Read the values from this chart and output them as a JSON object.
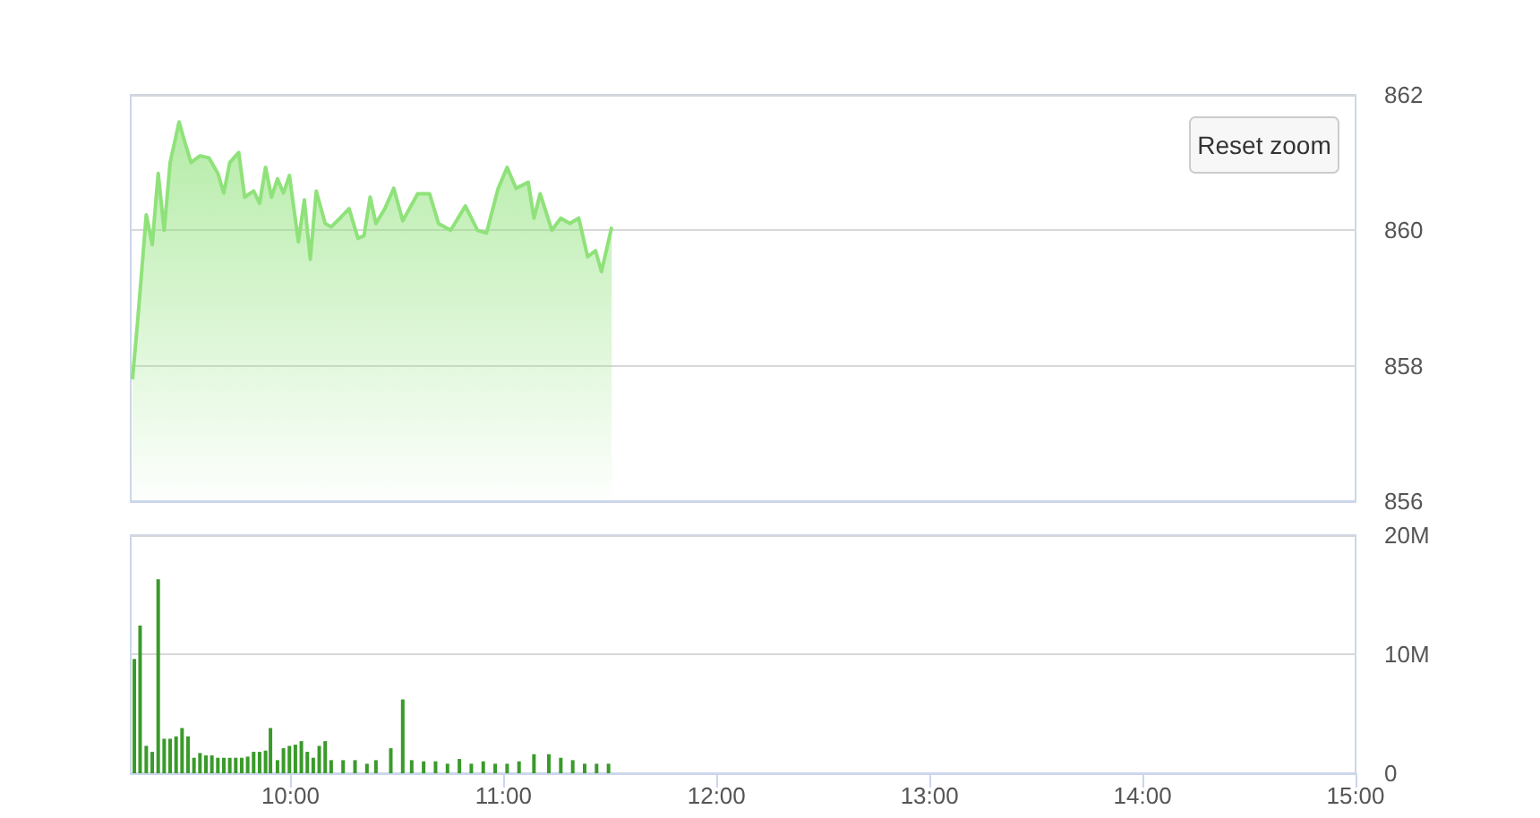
{
  "chart_data": [
    {
      "type": "area",
      "color": "#8fe27a",
      "x": [
        9.258,
        9.281,
        9.323,
        9.351,
        9.379,
        9.407,
        9.435,
        9.477,
        9.505,
        9.533,
        9.575,
        9.617,
        9.659,
        9.687,
        9.715,
        9.757,
        9.785,
        9.827,
        9.855,
        9.883,
        9.911,
        9.939,
        9.967,
        9.995,
        10.037,
        10.065,
        10.093,
        10.121,
        10.163,
        10.191,
        10.233,
        10.275,
        10.317,
        10.345,
        10.374,
        10.401,
        10.443,
        10.485,
        10.527,
        10.597,
        10.653,
        10.695,
        10.752,
        10.821,
        10.878,
        10.92,
        10.975,
        11.017,
        11.059,
        11.116,
        11.143,
        11.172,
        11.227,
        11.269,
        11.311,
        11.353,
        11.395,
        11.432,
        11.46,
        11.508
      ],
      "values": [
        857.8,
        858.6,
        860.23,
        859.79,
        860.84,
        860.0,
        861.0,
        861.6,
        861.29,
        861.0,
        861.1,
        861.07,
        860.84,
        860.55,
        861.0,
        861.15,
        860.49,
        860.58,
        860.4,
        860.93,
        860.49,
        860.76,
        860.55,
        860.81,
        859.83,
        860.45,
        859.57,
        860.58,
        860.1,
        860.05,
        860.18,
        860.32,
        859.88,
        859.92,
        860.49,
        860.1,
        860.32,
        860.62,
        860.14,
        860.54,
        860.54,
        860.1,
        860.0,
        860.36,
        860.0,
        859.96,
        860.62,
        860.93,
        860.62,
        860.71,
        860.18,
        860.54,
        860.0,
        860.18,
        860.1,
        860.18,
        859.61,
        859.7,
        859.39,
        860.05
      ],
      "xlim": [
        9.25,
        15
      ],
      "ylim": [
        856,
        862
      ],
      "yticks": [
        856,
        858,
        860,
        862
      ],
      "grid": "y",
      "tick_labels": "y",
      "annotations": [
        "Reset zoom"
      ]
    },
    {
      "type": "bar",
      "color": "#3a9a2a",
      "x": [
        9.267,
        9.294,
        9.323,
        9.351,
        9.379,
        9.407,
        9.435,
        9.463,
        9.491,
        9.519,
        9.547,
        9.575,
        9.603,
        9.631,
        9.659,
        9.687,
        9.715,
        9.743,
        9.771,
        9.799,
        9.827,
        9.855,
        9.883,
        9.906,
        9.939,
        9.967,
        9.995,
        10.023,
        10.051,
        10.079,
        10.107,
        10.135,
        10.163,
        10.191,
        10.247,
        10.303,
        10.359,
        10.401,
        10.471,
        10.527,
        10.569,
        10.625,
        10.681,
        10.737,
        10.793,
        10.849,
        10.905,
        10.961,
        11.017,
        11.073,
        11.143,
        11.213,
        11.269,
        11.325,
        11.381,
        11.437,
        11.493
      ],
      "values": [
        9.6,
        12.4,
        2.3,
        1.8,
        16.3,
        2.9,
        2.9,
        3.1,
        3.8,
        3.1,
        1.3,
        1.7,
        1.5,
        1.5,
        1.3,
        1.3,
        1.3,
        1.3,
        1.3,
        1.4,
        1.8,
        1.8,
        1.9,
        3.8,
        1.1,
        2.1,
        2.3,
        2.4,
        2.7,
        1.8,
        1.3,
        2.3,
        2.7,
        1.1,
        1.1,
        1.1,
        0.8,
        1.1,
        2.1,
        6.2,
        1.1,
        1.0,
        1.0,
        0.8,
        1.2,
        0.8,
        1.0,
        0.8,
        0.8,
        1.0,
        1.6,
        1.6,
        1.3,
        1.1,
        0.8,
        0.8,
        0.8
      ],
      "xlim": [
        9.25,
        15
      ],
      "xticks": [
        {
          "value": 10,
          "label": "10:00"
        },
        {
          "value": 11,
          "label": "11:00"
        },
        {
          "value": 12,
          "label": "12:00"
        },
        {
          "value": 13,
          "label": "13:00"
        },
        {
          "value": 14,
          "label": "14:00"
        },
        {
          "value": 15,
          "label": "15:00"
        }
      ],
      "ylim": [
        0,
        20
      ],
      "yticks": [
        {
          "value": 0,
          "label": "0"
        },
        {
          "value": 10,
          "label": "10M"
        },
        {
          "value": 20,
          "label": "20M"
        }
      ],
      "grid": "y"
    }
  ]
}
